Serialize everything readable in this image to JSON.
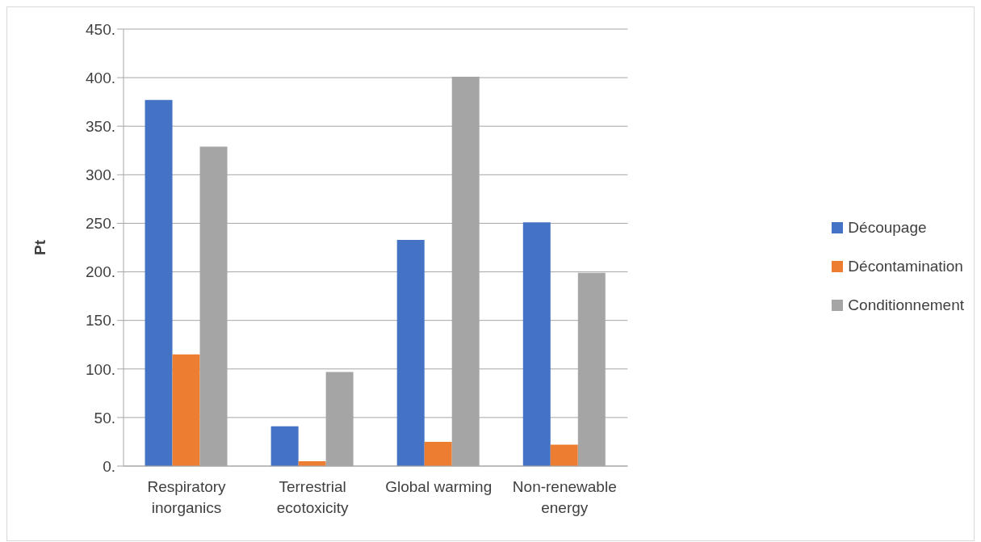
{
  "chart_data": {
    "type": "bar",
    "ylabel": "Pt",
    "categories": [
      "Respiratory inorganics",
      "Terrestrial ecotoxicity",
      "Global warming",
      "Non-renewable energy"
    ],
    "series": [
      {
        "name": "Découpage",
        "color": "#4472c4",
        "values": [
          377,
          41,
          233,
          251
        ]
      },
      {
        "name": "Décontamination",
        "color": "#ed7d31",
        "values": [
          115,
          5,
          25,
          22
        ]
      },
      {
        "name": "Conditionnement",
        "color": "#a5a5a5",
        "values": [
          329,
          97,
          401,
          199
        ]
      }
    ],
    "ylim": [
      0,
      450
    ],
    "yticks": [
      {
        "value": 0,
        "label": "0."
      },
      {
        "value": 50,
        "label": "50."
      },
      {
        "value": 100,
        "label": "100."
      },
      {
        "value": 150,
        "label": "150."
      },
      {
        "value": 200,
        "label": "200."
      },
      {
        "value": 250,
        "label": "250."
      },
      {
        "value": 300,
        "label": "300."
      },
      {
        "value": 350,
        "label": "350."
      },
      {
        "value": 400,
        "label": "400."
      },
      {
        "value": 450,
        "label": "450."
      }
    ],
    "grid": "y",
    "legend": "right"
  }
}
